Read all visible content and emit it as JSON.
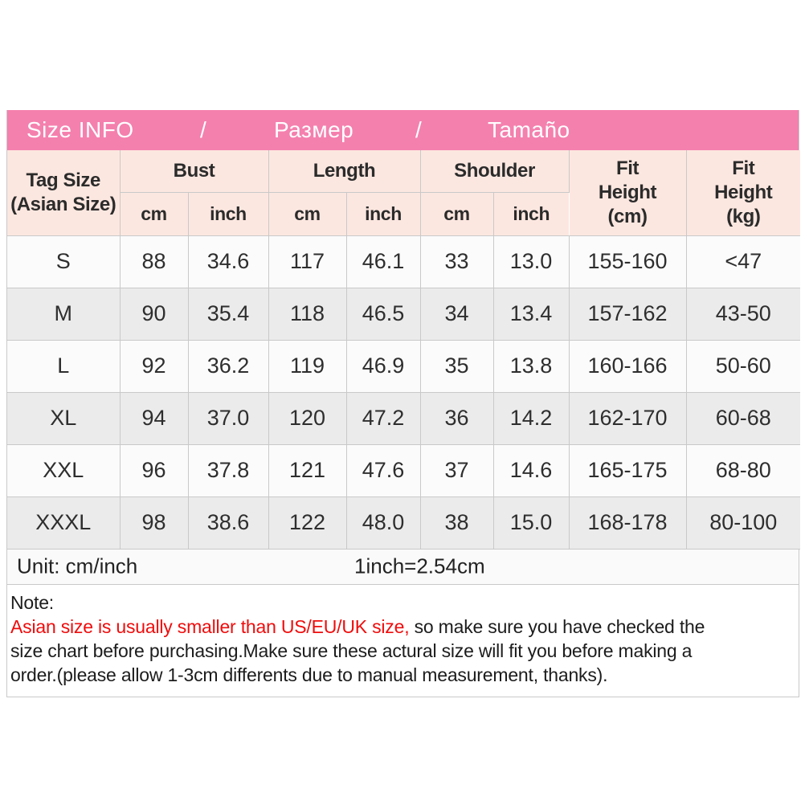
{
  "banner": {
    "title_en": "Size INFO",
    "separator1": "/",
    "title_ru": "Размер",
    "separator2": "/",
    "title_es": "Tamaño"
  },
  "header": {
    "tag_size": [
      "Tag Size",
      "(Asian Size)"
    ],
    "bust": "Bust",
    "length": "Length",
    "shoulder": "Shoulder",
    "cm": "cm",
    "inch": "inch",
    "fit_height_cm": [
      "Fit",
      "Height",
      "(cm)"
    ],
    "fit_height_kg": [
      "Fit",
      "Height",
      "(kg)"
    ]
  },
  "chart_data": {
    "type": "table",
    "title": "Size INFO / Размер / Tamaño",
    "columns": [
      "Tag Size (Asian Size)",
      "Bust cm",
      "Bust inch",
      "Length cm",
      "Length inch",
      "Shoulder cm",
      "Shoulder inch",
      "Fit Height (cm)",
      "Fit Height (kg)"
    ],
    "rows": [
      [
        "S",
        "88",
        "34.6",
        "117",
        "46.1",
        "33",
        "13.0",
        "155-160",
        "<47"
      ],
      [
        "M",
        "90",
        "35.4",
        "118",
        "46.5",
        "34",
        "13.4",
        "157-162",
        "43-50"
      ],
      [
        "L",
        "92",
        "36.2",
        "119",
        "46.9",
        "35",
        "13.8",
        "160-166",
        "50-60"
      ],
      [
        "XL",
        "94",
        "37.0",
        "120",
        "47.2",
        "36",
        "14.2",
        "162-170",
        "60-68"
      ],
      [
        "XXL",
        "96",
        "37.8",
        "121",
        "47.6",
        "37",
        "14.6",
        "165-175",
        "68-80"
      ],
      [
        "XXXL",
        "98",
        "38.6",
        "122",
        "48.0",
        "38",
        "15.0",
        "168-178",
        "80-100"
      ]
    ]
  },
  "unit": {
    "label": "Unit: cm/inch",
    "conversion": "1inch=2.54cm"
  },
  "note": {
    "label": "Note:",
    "line1_red": "Asian size is usually smaller than US/EU/UK size,",
    "line1_rest": " so make sure you have checked the",
    "line2": "size chart before purchasing.Make sure these actural size will fit you before making a",
    "line3": "order.(please allow 1-3cm differents due to manual measurement, thanks)."
  },
  "colors": {
    "banner_pink": "#f480ae",
    "header_peach": "#fce7e0",
    "row_alt_gray": "#ebebeb",
    "border_gray": "#c9c9c9",
    "note_red": "#f00c0c"
  }
}
